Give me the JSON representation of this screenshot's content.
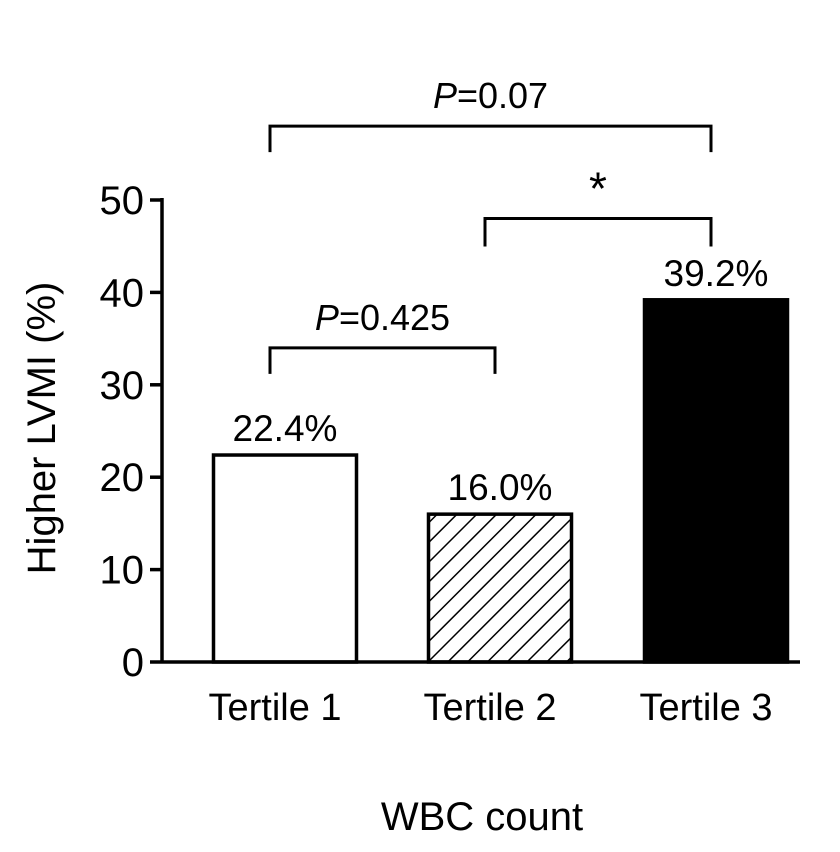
{
  "chart_data": {
    "type": "bar",
    "title": "",
    "xlabel": "WBC count",
    "ylabel": "Higher LVMI (%)",
    "categories": [
      "Tertile 1",
      "Tertile 2",
      "Tertile 3"
    ],
    "values": [
      22.4,
      16.0,
      39.2
    ],
    "data_labels": [
      "22.4%",
      "16.0%",
      "39.2%"
    ],
    "bar_fills": [
      "white",
      "hatched",
      "black"
    ],
    "ylim": [
      0,
      50
    ],
    "yticks": [
      0,
      10,
      20,
      30,
      40,
      50
    ],
    "grid": false,
    "legend": "none",
    "colors": {
      "outline": "#000000",
      "fill_white": "#ffffff",
      "fill_black": "#000000"
    },
    "comparisons": [
      {
        "from": 0,
        "to": 2,
        "p_prefix": "P",
        "p_value": "=0.07",
        "level": 58
      },
      {
        "from": 1,
        "to": 2,
        "p_prefix": "",
        "p_value": "*",
        "level": 48
      },
      {
        "from": 0,
        "to": 1,
        "p_prefix": "P",
        "p_value": "=0.425",
        "level": 34
      }
    ]
  }
}
